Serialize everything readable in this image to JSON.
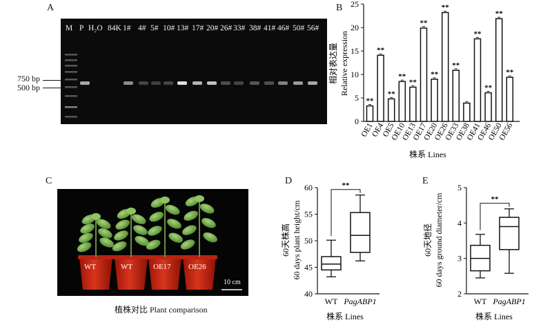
{
  "panels": {
    "A": {
      "letter": "A",
      "lane_labels": [
        "M",
        "P",
        "H₂O",
        "84K",
        "1#",
        "4#",
        "5#",
        "10#",
        "13#",
        "17#",
        "20#",
        "26#",
        "33#",
        "38#",
        "41#",
        "46#",
        "50#",
        "56#"
      ],
      "bp_markers": [
        "750 bp",
        "500 bp"
      ]
    },
    "B": {
      "letter": "B"
    },
    "C": {
      "letter": "C",
      "pot_labels": [
        "WT",
        "WT",
        "OE17",
        "OE26"
      ],
      "scale_label": "10 cm",
      "caption": "植株对比 Plant comparison"
    },
    "D": {
      "letter": "D"
    },
    "E": {
      "letter": "E"
    }
  },
  "chart_data": [
    {
      "panel": "B",
      "type": "bar",
      "categories": [
        "OE1",
        "OE4",
        "OE5",
        "OE10",
        "OE13",
        "OE17",
        "OE20",
        "OE26",
        "OE33",
        "OE38",
        "OE41",
        "OE46",
        "OE50",
        "OE56"
      ],
      "values": [
        3.3,
        14.1,
        4.8,
        8.5,
        7.3,
        19.9,
        9.0,
        23.2,
        10.9,
        3.9,
        17.6,
        6.1,
        21.9,
        9.4
      ],
      "significance": [
        "**",
        "**",
        "**",
        "**",
        "**",
        "**",
        "**",
        "**",
        "**",
        "",
        "**",
        "**",
        "**",
        "**"
      ],
      "xlabel": "株系 Lines",
      "ylabel_cn": "相对表达量",
      "ylabel_en": "Relative expression",
      "ylim": [
        0,
        25
      ],
      "yticks": [
        0,
        5,
        10,
        15,
        20,
        25
      ]
    },
    {
      "panel": "D",
      "type": "box",
      "categories": [
        "WT",
        "PagABP1"
      ],
      "boxes": [
        {
          "min": 43.2,
          "q1": 44.5,
          "median": 45.6,
          "q3": 47.0,
          "max": 50.1
        },
        {
          "min": 46.2,
          "q1": 47.8,
          "median": 51.0,
          "q3": 55.3,
          "max": 58.6
        }
      ],
      "significance": "**",
      "xlabel": "株系 Lines",
      "ylabel_cn": "60天株高",
      "ylabel_en": "60 days plant height/cm",
      "ylim": [
        40,
        60
      ],
      "yticks": [
        40,
        45,
        50,
        55,
        60
      ]
    },
    {
      "panel": "E",
      "type": "box",
      "categories": [
        "WT",
        "PagABP1"
      ],
      "boxes": [
        {
          "min": 2.45,
          "q1": 2.65,
          "median": 3.0,
          "q3": 3.37,
          "max": 3.68
        },
        {
          "min": 2.58,
          "q1": 3.25,
          "median": 3.9,
          "q3": 4.16,
          "max": 4.4
        }
      ],
      "significance": "**",
      "xlabel": "株系 Lines",
      "ylabel_cn": "60天地径",
      "ylabel_en": "60 days ground diameter/cm",
      "ylim": [
        2,
        5
      ],
      "yticks": [
        2,
        3,
        4,
        5
      ]
    }
  ]
}
